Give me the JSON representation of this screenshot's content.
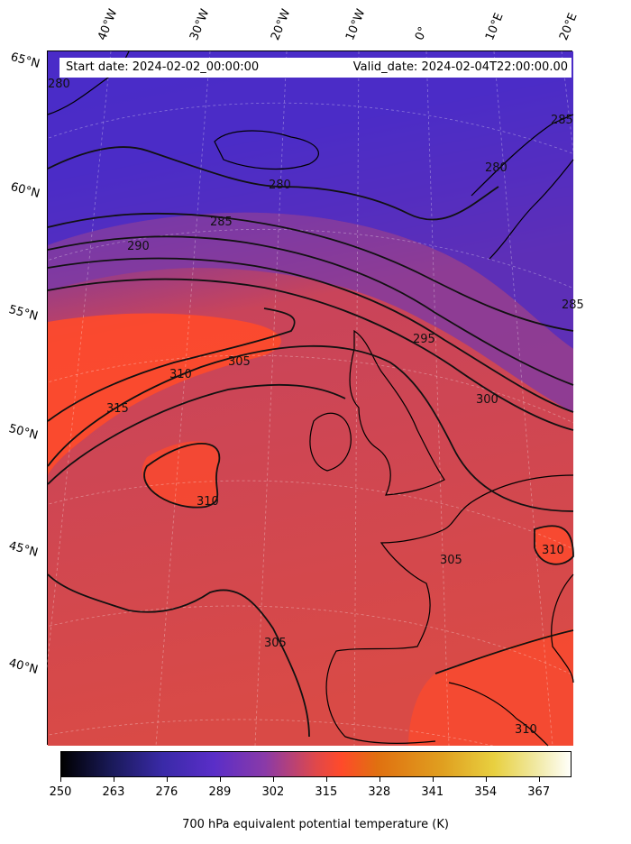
{
  "map": {
    "start_label": "Start date: 2024-02-02_00:00:00",
    "valid_label": "Valid_date: 2024-02-04T22:00:00.00",
    "longitude_labels": [
      "40°W",
      "30°W",
      "20°W",
      "10°W",
      "0°",
      "10°E",
      "20°E"
    ],
    "latitude_labels": [
      "65°N",
      "60°N",
      "55°N",
      "50°N",
      "45°N",
      "40°N"
    ],
    "contour_labels": [
      "280",
      "280",
      "285",
      "290",
      "295",
      "300",
      "305",
      "310",
      "315",
      "310",
      "305",
      "310",
      "305",
      "310",
      "285",
      "285",
      "280"
    ],
    "colors": {
      "cold": "#4a2cc8",
      "mid": "#b8476a",
      "warm": "#ff4a2a",
      "contour": "#111111"
    }
  },
  "colorbar": {
    "title": "700 hPa equivalent potential temperature (K)",
    "ticks": [
      "250",
      "263",
      "276",
      "289",
      "302",
      "315",
      "328",
      "341",
      "354",
      "367"
    ],
    "range": [
      250,
      375
    ],
    "colormap": "CMRmap"
  }
}
